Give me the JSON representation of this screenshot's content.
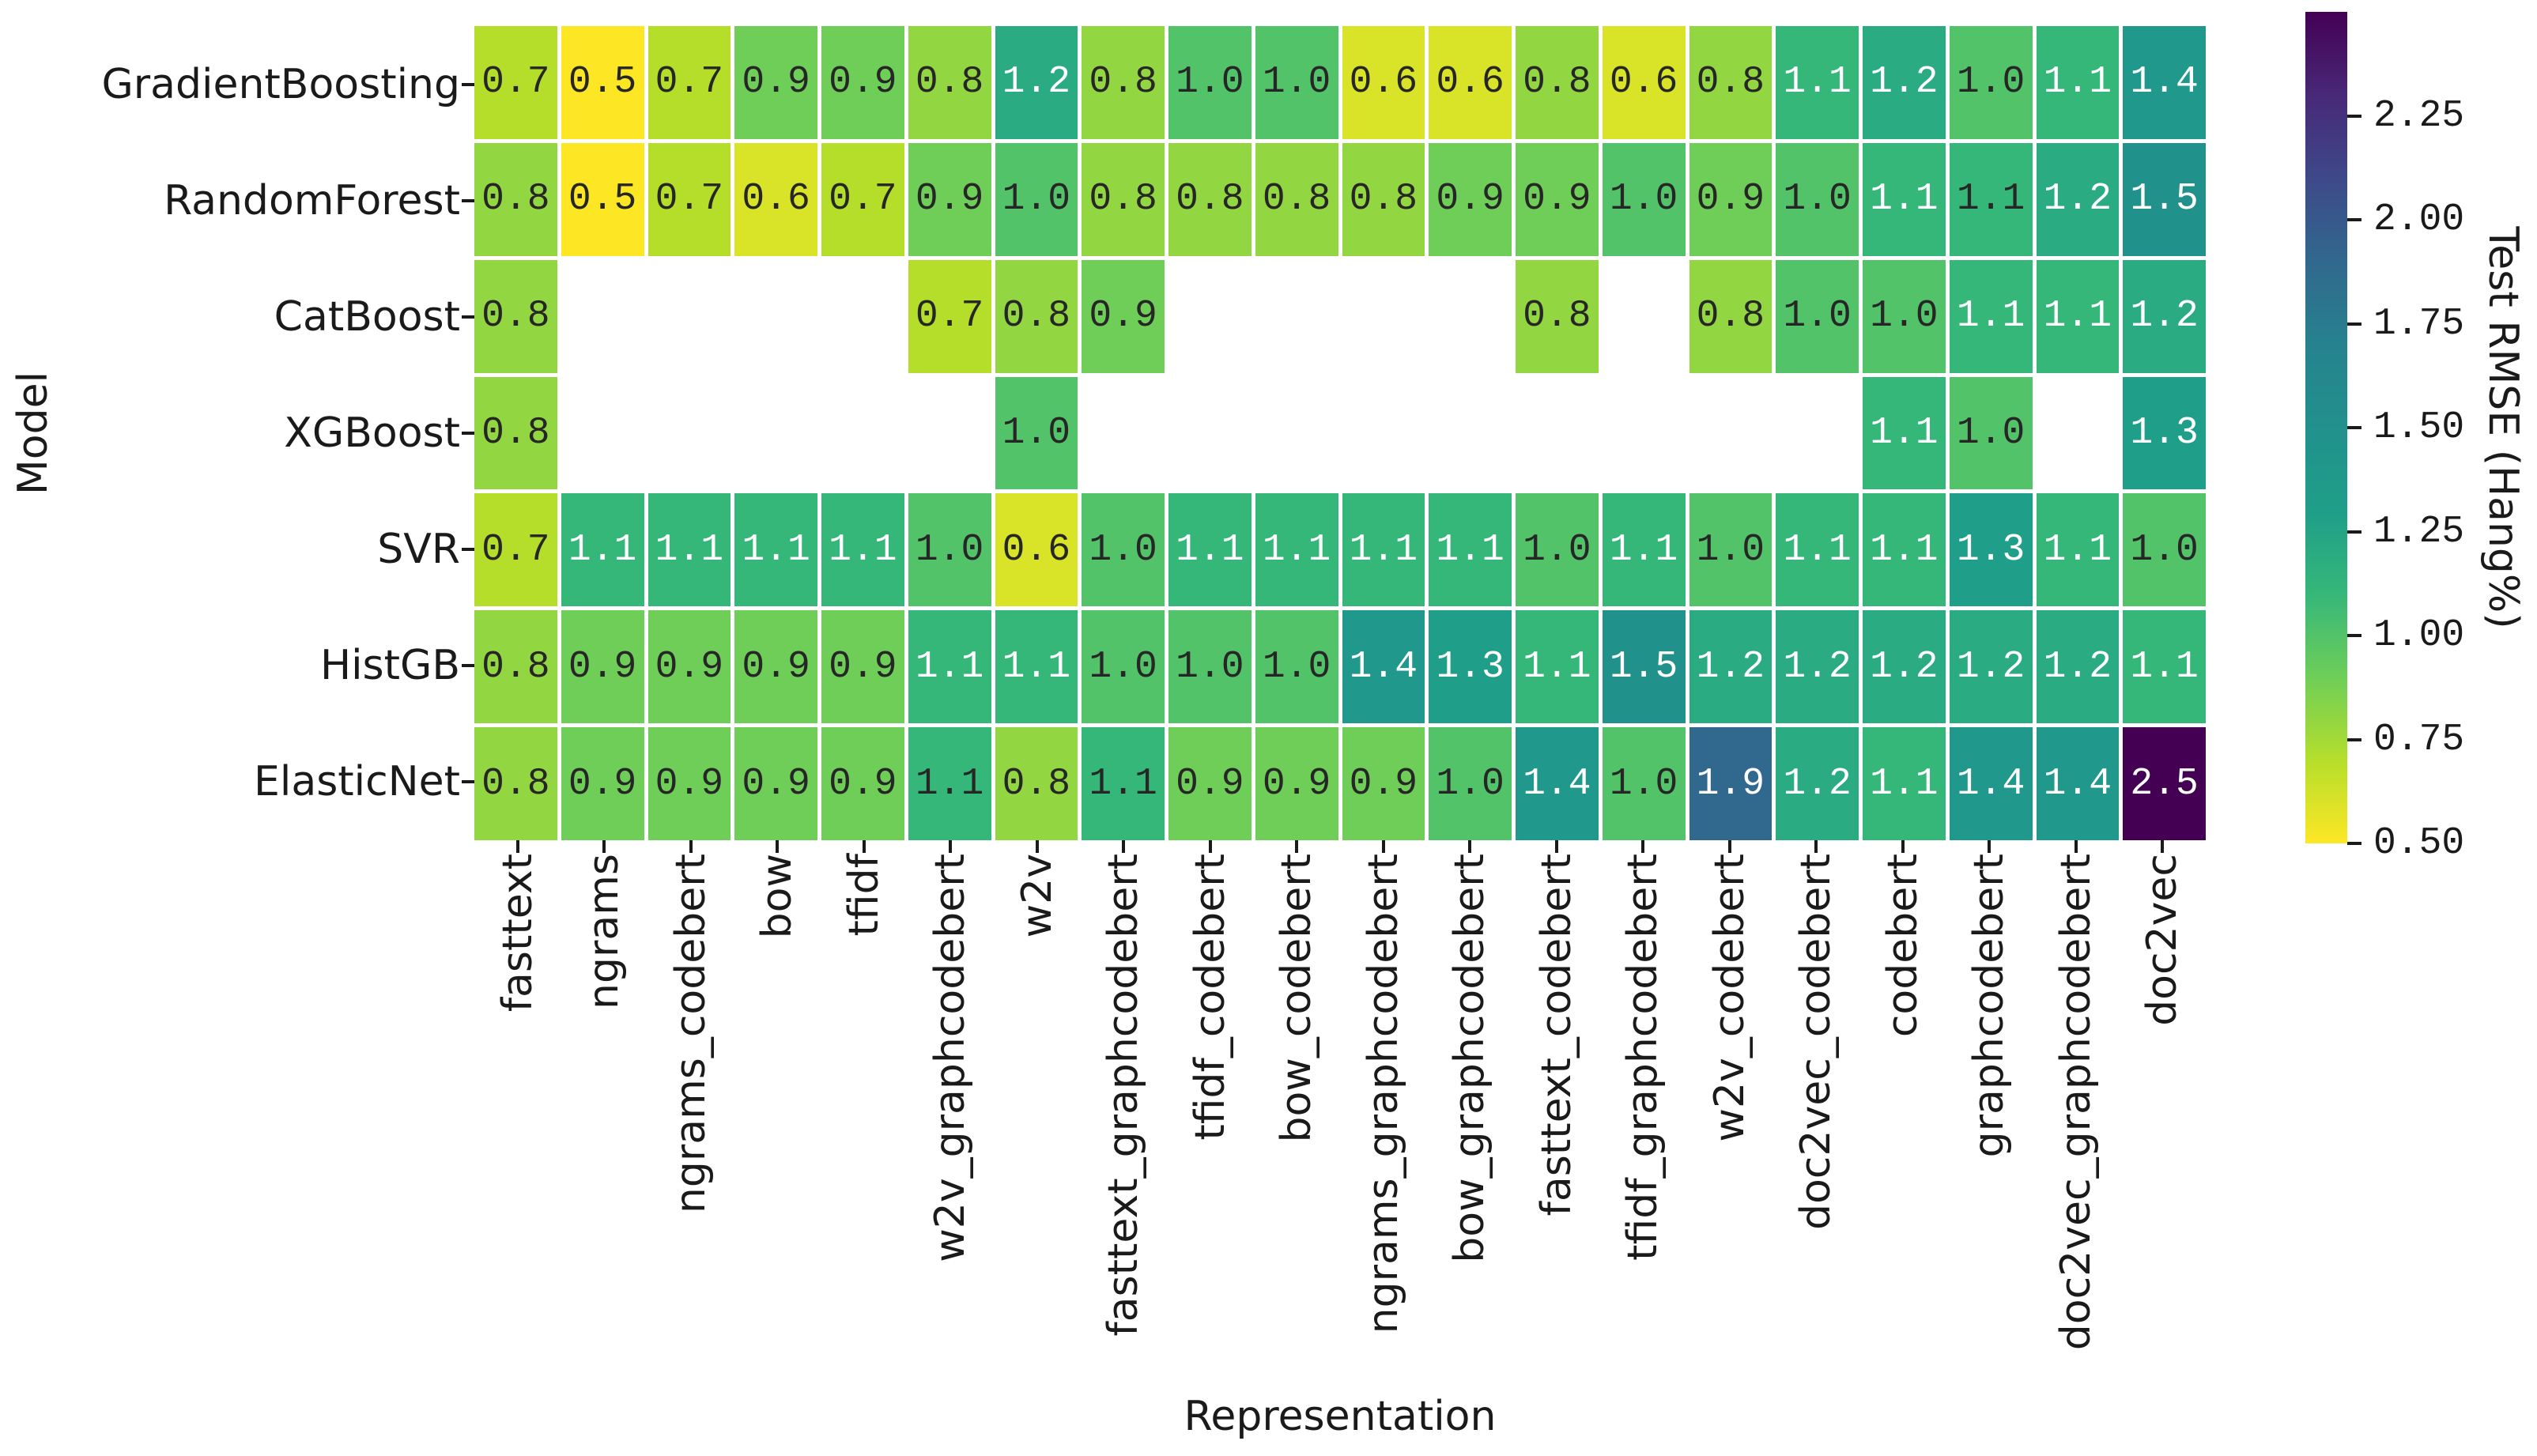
{
  "chart_data": {
    "type": "heatmap",
    "xlabel": "Representation",
    "ylabel": "Model",
    "colorbar_label": "Test RMSE (Hang%)",
    "colormap": "viridis_r",
    "vmin": 0.5,
    "vmax": 2.5,
    "colorbar_ticks": [
      "2.25",
      "2.00",
      "1.75",
      "1.50",
      "1.25",
      "1.00",
      "0.75",
      "0.50"
    ],
    "colormap_stops": [
      "#440154",
      "#482878",
      "#3e4989",
      "#31688e",
      "#26828e",
      "#21918c",
      "#1f9e89",
      "#35b779",
      "#6ece58",
      "#b5de2b",
      "#fde725"
    ],
    "annotation_text_colors": {
      "w": "#ffffff",
      "k": "#262626"
    },
    "models": [
      "GradientBoosting",
      "RandomForest",
      "CatBoost",
      "XGBoost",
      "SVR",
      "HistGB",
      "ElasticNet"
    ],
    "representations": [
      "fasttext",
      "ngrams",
      "ngrams_codebert",
      "bow",
      "tfidf",
      "w2v_graphcodebert",
      "w2v",
      "fasttext_graphcodebert",
      "tfidf_codebert",
      "bow_codebert",
      "ngrams_graphcodebert",
      "bow_graphcodebert",
      "fasttext_codebert",
      "tfidf_graphcodebert",
      "w2v_codebert",
      "doc2vec_codebert",
      "codebert",
      "graphcodebert",
      "doc2vec_graphcodebert",
      "doc2vec"
    ],
    "cells": [
      [
        [
          "0.7",
          "k"
        ],
        [
          "0.5",
          "k"
        ],
        [
          "0.7",
          "k"
        ],
        [
          "0.9",
          "k"
        ],
        [
          "0.9",
          "k"
        ],
        [
          "0.8",
          "k"
        ],
        [
          "1.2",
          "w"
        ],
        [
          "0.8",
          "k"
        ],
        [
          "1.0",
          "k"
        ],
        [
          "1.0",
          "k"
        ],
        [
          "0.6",
          "k"
        ],
        [
          "0.6",
          "k"
        ],
        [
          "0.8",
          "k"
        ],
        [
          "0.6",
          "k"
        ],
        [
          "0.8",
          "k"
        ],
        [
          "1.1",
          "w"
        ],
        [
          "1.2",
          "w"
        ],
        [
          "1.0",
          "k"
        ],
        [
          "1.1",
          "w"
        ],
        [
          "1.4",
          "w"
        ]
      ],
      [
        [
          "0.8",
          "k"
        ],
        [
          "0.5",
          "k"
        ],
        [
          "0.7",
          "k"
        ],
        [
          "0.6",
          "k"
        ],
        [
          "0.7",
          "k"
        ],
        [
          "0.9",
          "k"
        ],
        [
          "1.0",
          "k"
        ],
        [
          "0.8",
          "k"
        ],
        [
          "0.8",
          "k"
        ],
        [
          "0.8",
          "k"
        ],
        [
          "0.8",
          "k"
        ],
        [
          "0.9",
          "k"
        ],
        [
          "0.9",
          "k"
        ],
        [
          "1.0",
          "k"
        ],
        [
          "0.9",
          "k"
        ],
        [
          "1.0",
          "k"
        ],
        [
          "1.1",
          "w"
        ],
        [
          "1.1",
          "k"
        ],
        [
          "1.2",
          "w"
        ],
        [
          "1.5",
          "w"
        ]
      ],
      [
        [
          "0.8",
          "k"
        ],
        null,
        null,
        null,
        null,
        [
          "0.7",
          "k"
        ],
        [
          "0.8",
          "k"
        ],
        [
          "0.9",
          "k"
        ],
        null,
        null,
        null,
        null,
        [
          "0.8",
          "k"
        ],
        null,
        [
          "0.8",
          "k"
        ],
        [
          "1.0",
          "k"
        ],
        [
          "1.0",
          "k"
        ],
        [
          "1.1",
          "w"
        ],
        [
          "1.1",
          "w"
        ],
        [
          "1.2",
          "w"
        ]
      ],
      [
        [
          "0.8",
          "k"
        ],
        null,
        null,
        null,
        null,
        null,
        [
          "1.0",
          "k"
        ],
        null,
        null,
        null,
        null,
        null,
        null,
        null,
        null,
        null,
        [
          "1.1",
          "w"
        ],
        [
          "1.0",
          "k"
        ],
        null,
        [
          "1.3",
          "w"
        ]
      ],
      [
        [
          "0.7",
          "k"
        ],
        [
          "1.1",
          "w"
        ],
        [
          "1.1",
          "w"
        ],
        [
          "1.1",
          "w"
        ],
        [
          "1.1",
          "w"
        ],
        [
          "1.0",
          "k"
        ],
        [
          "0.6",
          "k"
        ],
        [
          "1.0",
          "k"
        ],
        [
          "1.1",
          "w"
        ],
        [
          "1.1",
          "w"
        ],
        [
          "1.1",
          "w"
        ],
        [
          "1.1",
          "w"
        ],
        [
          "1.0",
          "k"
        ],
        [
          "1.1",
          "w"
        ],
        [
          "1.0",
          "k"
        ],
        [
          "1.1",
          "w"
        ],
        [
          "1.1",
          "w"
        ],
        [
          "1.3",
          "w"
        ],
        [
          "1.1",
          "w"
        ],
        [
          "1.0",
          "k"
        ]
      ],
      [
        [
          "0.8",
          "k"
        ],
        [
          "0.9",
          "k"
        ],
        [
          "0.9",
          "k"
        ],
        [
          "0.9",
          "k"
        ],
        [
          "0.9",
          "k"
        ],
        [
          "1.1",
          "w"
        ],
        [
          "1.1",
          "w"
        ],
        [
          "1.0",
          "k"
        ],
        [
          "1.0",
          "k"
        ],
        [
          "1.0",
          "k"
        ],
        [
          "1.4",
          "w"
        ],
        [
          "1.3",
          "w"
        ],
        [
          "1.1",
          "w"
        ],
        [
          "1.5",
          "w"
        ],
        [
          "1.2",
          "w"
        ],
        [
          "1.2",
          "w"
        ],
        [
          "1.2",
          "w"
        ],
        [
          "1.2",
          "w"
        ],
        [
          "1.2",
          "w"
        ],
        [
          "1.1",
          "w"
        ]
      ],
      [
        [
          "0.8",
          "k"
        ],
        [
          "0.9",
          "k"
        ],
        [
          "0.9",
          "k"
        ],
        [
          "0.9",
          "k"
        ],
        [
          "0.9",
          "k"
        ],
        [
          "1.1",
          "k"
        ],
        [
          "0.8",
          "k"
        ],
        [
          "1.1",
          "k"
        ],
        [
          "0.9",
          "k"
        ],
        [
          "0.9",
          "k"
        ],
        [
          "0.9",
          "k"
        ],
        [
          "1.0",
          "k"
        ],
        [
          "1.4",
          "w"
        ],
        [
          "1.0",
          "k"
        ],
        [
          "1.9",
          "w"
        ],
        [
          "1.2",
          "w"
        ],
        [
          "1.1",
          "w"
        ],
        [
          "1.4",
          "w"
        ],
        [
          "1.4",
          "w"
        ],
        [
          "2.5",
          "w"
        ]
      ]
    ]
  }
}
